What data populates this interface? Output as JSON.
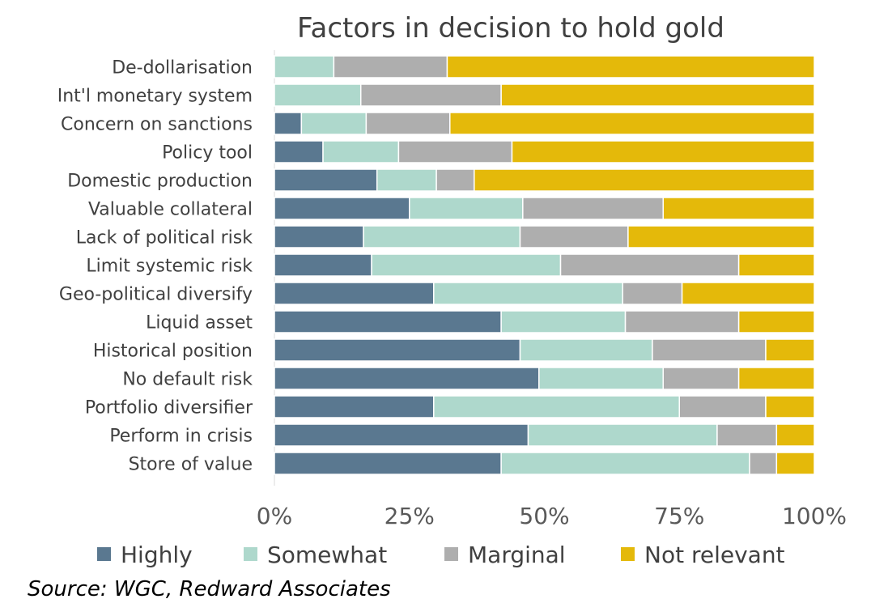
{
  "chart_data": {
    "type": "bar",
    "orientation": "horizontal",
    "stacked": true,
    "title": "Factors in decision to hold gold",
    "categories": [
      "De-dollarisation",
      "Int'l monetary system",
      "Concern on sanctions",
      "Policy tool",
      "Domestic production",
      "Valuable collateral",
      "Lack of political risk",
      "Limit systemic risk",
      "Geo-political diversify",
      "Liquid asset",
      "Historical position",
      "No default risk",
      "Portfolio diversifier",
      "Perform in crisis",
      "Store of value"
    ],
    "series": [
      {
        "name": "Highly",
        "color": "#5a7890",
        "values": [
          0,
          0,
          5,
          9,
          19,
          25,
          16.5,
          18,
          29.5,
          42,
          45.5,
          49,
          29.5,
          47,
          42
        ]
      },
      {
        "name": "Somewhat",
        "color": "#aed8cc",
        "values": [
          11,
          16,
          12,
          14,
          11,
          21,
          29,
          35,
          35,
          23,
          24.5,
          23,
          45.5,
          35,
          46
        ]
      },
      {
        "name": "Marginal",
        "color": "#aeaeae",
        "values": [
          21,
          26,
          15.5,
          21,
          7,
          26,
          20,
          33,
          11,
          21,
          21,
          14,
          16,
          11,
          5
        ]
      },
      {
        "name": "Not relevant",
        "color": "#e4b90a",
        "values": [
          68,
          58,
          67.5,
          56,
          63,
          28,
          34.5,
          14,
          24.5,
          14,
          9,
          14,
          9,
          7,
          7
        ]
      }
    ],
    "x_ticks": [
      "0%",
      "25%",
      "50%",
      "75%",
      "100%"
    ],
    "xlim": [
      0,
      100
    ],
    "grid": false,
    "legend_position": "bottom"
  },
  "source": "Source: WGC, Redward Associates"
}
